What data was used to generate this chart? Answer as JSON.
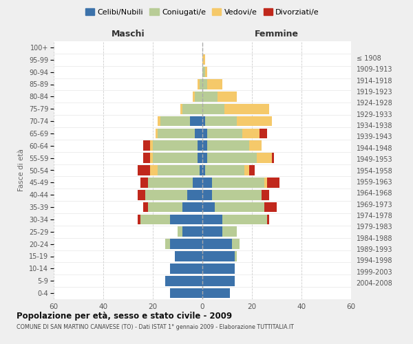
{
  "age_groups": [
    "0-4",
    "5-9",
    "10-14",
    "15-19",
    "20-24",
    "25-29",
    "30-34",
    "35-39",
    "40-44",
    "45-49",
    "50-54",
    "55-59",
    "60-64",
    "65-69",
    "70-74",
    "75-79",
    "80-84",
    "85-89",
    "90-94",
    "95-99",
    "100+"
  ],
  "birth_years": [
    "2004-2008",
    "1999-2003",
    "1994-1998",
    "1989-1993",
    "1984-1988",
    "1979-1983",
    "1974-1978",
    "1969-1973",
    "1964-1968",
    "1959-1963",
    "1954-1958",
    "1949-1953",
    "1944-1948",
    "1939-1943",
    "1934-1938",
    "1929-1933",
    "1924-1928",
    "1919-1923",
    "1914-1918",
    "1909-1913",
    "≤ 1908"
  ],
  "maschi": {
    "celibi": [
      13,
      15,
      13,
      11,
      13,
      8,
      13,
      8,
      6,
      4,
      1,
      2,
      2,
      3,
      5,
      0,
      0,
      0,
      0,
      0,
      0
    ],
    "coniugati": [
      0,
      0,
      0,
      0,
      2,
      2,
      12,
      14,
      17,
      18,
      17,
      18,
      18,
      15,
      12,
      8,
      3,
      1,
      0,
      0,
      0
    ],
    "vedovi": [
      0,
      0,
      0,
      0,
      0,
      0,
      0,
      0,
      0,
      0,
      3,
      1,
      1,
      1,
      1,
      1,
      1,
      1,
      0,
      0,
      0
    ],
    "divorziati": [
      0,
      0,
      0,
      0,
      0,
      0,
      1,
      2,
      3,
      3,
      5,
      3,
      3,
      0,
      0,
      0,
      0,
      0,
      0,
      0,
      0
    ]
  },
  "femmine": {
    "nubili": [
      11,
      13,
      13,
      13,
      12,
      8,
      8,
      5,
      4,
      4,
      1,
      2,
      2,
      2,
      1,
      0,
      0,
      0,
      0,
      0,
      0
    ],
    "coniugate": [
      0,
      0,
      0,
      1,
      3,
      6,
      18,
      20,
      20,
      21,
      16,
      20,
      17,
      14,
      13,
      9,
      6,
      2,
      1,
      0,
      0
    ],
    "vedove": [
      0,
      0,
      0,
      0,
      0,
      0,
      0,
      0,
      0,
      1,
      2,
      6,
      5,
      7,
      14,
      18,
      8,
      6,
      1,
      1,
      0
    ],
    "divorziate": [
      0,
      0,
      0,
      0,
      0,
      0,
      1,
      5,
      3,
      5,
      2,
      1,
      0,
      3,
      0,
      0,
      0,
      0,
      0,
      0,
      0
    ]
  },
  "colors": {
    "celibi": "#3c72aa",
    "coniugati": "#b8cc96",
    "vedovi": "#f5c96a",
    "divorziati": "#c0281c"
  },
  "xlim": 60,
  "title": "Popolazione per età, sesso e stato civile - 2009",
  "subtitle": "COMUNE DI SAN MARTINO CANAVESE (TO) - Dati ISTAT 1° gennaio 2009 - Elaborazione TUTTITALIA.IT",
  "ylabel_left": "Fasce di età",
  "maschi_label": "Maschi",
  "femmine_label": "Femmine",
  "legend_labels": [
    "Celibi/Nubili",
    "Coniugati/e",
    "Vedovi/e",
    "Divorziati/e"
  ],
  "bg_color": "#efefef",
  "plot_bg_color": "#ffffff"
}
